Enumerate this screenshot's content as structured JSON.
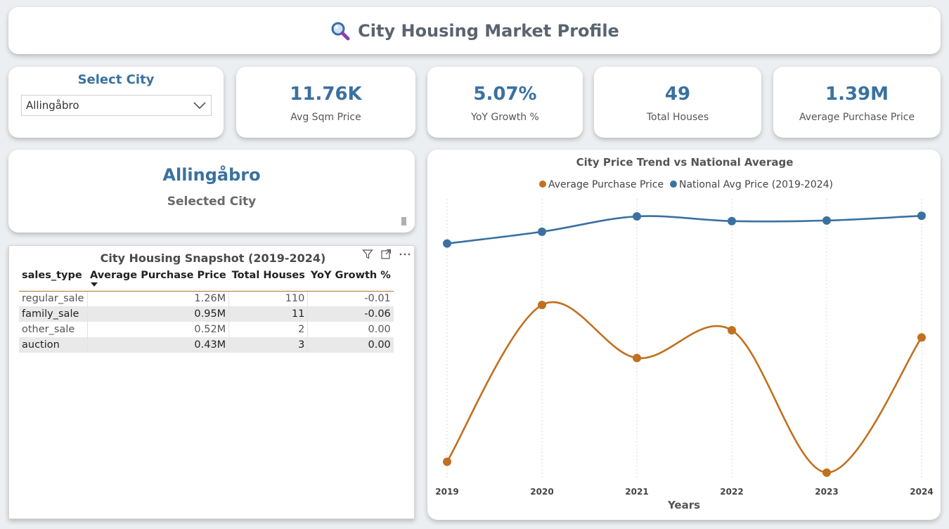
{
  "header": {
    "title": "City Housing Market Profile",
    "icon": "magnifier-icon"
  },
  "slicer": {
    "title": "Select City",
    "selected": "Allingåbro"
  },
  "kpis": [
    {
      "value": "11.76K",
      "label": "Avg Sqm Price"
    },
    {
      "value": "5.07%",
      "label": "YoY Growth %"
    },
    {
      "value": "49",
      "label": "Total Houses"
    },
    {
      "value": "1.39M",
      "label": "Average Purchase Price"
    }
  ],
  "selected_city": {
    "name": "Allingåbro",
    "caption": "Selected City"
  },
  "table": {
    "title": "City Housing Snapshot (2019-2024)",
    "columns": [
      "sales_type",
      "Average Purchase Price",
      "Total Houses",
      "YoY Growth %"
    ],
    "rows": [
      [
        "regular_sale",
        "1.26M",
        "110",
        "-0.01"
      ],
      [
        "family_sale",
        "0.95M",
        "11",
        "-0.06"
      ],
      [
        "other_sale",
        "0.52M",
        "2",
        "0.00"
      ],
      [
        "auction",
        "0.43M",
        "3",
        "0.00"
      ]
    ]
  },
  "colors": {
    "accent": "#3a71a0",
    "city_series": "#c0701e",
    "national_series": "#3a71a0"
  },
  "chart_data": {
    "type": "line",
    "title": "City Price Trend vs National Average",
    "xlabel": "Years",
    "ylabel": "",
    "categories": [
      "2019",
      "2020",
      "2021",
      "2022",
      "2023",
      "2024"
    ],
    "legend_position": "top-center",
    "grid": "vertical-dotted",
    "series": [
      {
        "name": "Average Purchase Price",
        "axis": "left",
        "values": [
          0.55,
          1.85,
          1.41,
          1.64,
          0.46,
          1.58
        ],
        "ylim": [
          0.4,
          2.8
        ]
      },
      {
        "name": "National Avg Price (2019-2024)",
        "axis": "right",
        "values": [
          2.35,
          2.45,
          2.58,
          2.54,
          2.545,
          2.585
        ],
        "ylim": [
          0.35,
          2.8
        ]
      }
    ]
  }
}
